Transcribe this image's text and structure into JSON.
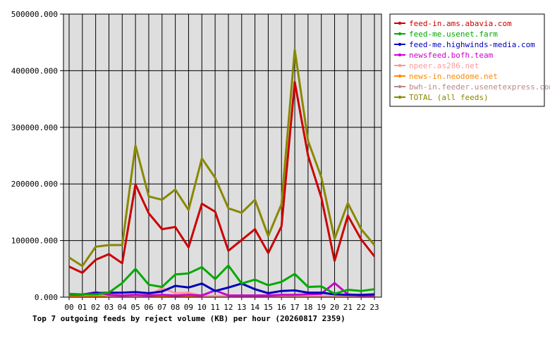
{
  "chart_data": {
    "type": "line",
    "title": "Top 7 outgoing feeds by reject volume (KB) per hour (20260817 2359)",
    "xlabel": "",
    "ylabel": "",
    "categories": [
      "00",
      "01",
      "02",
      "03",
      "04",
      "05",
      "06",
      "07",
      "08",
      "09",
      "10",
      "11",
      "12",
      "13",
      "14",
      "15",
      "16",
      "17",
      "18",
      "19",
      "20",
      "21",
      "22",
      "23"
    ],
    "ylim": [
      0,
      500000
    ],
    "yticks": [
      "0.000",
      "100000.000",
      "200000.000",
      "300000.000",
      "400000.000",
      "500000.000"
    ],
    "grid": true,
    "legend_position": "right",
    "series": [
      {
        "name": "feed-in.ams.abavia.com",
        "color": "#cc0000",
        "values": [
          54000,
          43000,
          66000,
          76000,
          60000,
          199000,
          148000,
          120000,
          124000,
          88000,
          165000,
          151000,
          82000,
          101000,
          120000,
          78000,
          125000,
          380000,
          250000,
          176000,
          64000,
          144000,
          102000,
          72000
        ]
      },
      {
        "name": "feed-me.usenet.farm",
        "color": "#00aa00",
        "values": [
          6000,
          5000,
          5000,
          8000,
          25000,
          50000,
          22000,
          18000,
          40000,
          42000,
          53000,
          32000,
          56000,
          24000,
          31000,
          21000,
          27000,
          41000,
          18000,
          19000,
          6000,
          13000,
          11000,
          14000
        ]
      },
      {
        "name": "feed-me.highwinds-media.com",
        "color": "#0000bb",
        "values": [
          5000,
          5000,
          7000,
          8000,
          8000,
          9000,
          7000,
          10000,
          20000,
          17000,
          24000,
          11000,
          17000,
          24000,
          14000,
          7000,
          11000,
          12000,
          8000,
          8000,
          5000,
          4000,
          4000,
          5000
        ]
      },
      {
        "name": "newsfeed.bofh.team",
        "color": "#cc00cc",
        "values": [
          5000,
          4000,
          9000,
          4000,
          3000,
          4000,
          3000,
          4000,
          3000,
          4000,
          3000,
          12000,
          3000,
          3000,
          3000,
          3000,
          4000,
          4000,
          5000,
          6000,
          25000,
          5000,
          3000,
          3000
        ]
      },
      {
        "name": "npeer.as286.net",
        "color": "#ff9999",
        "values": [
          6000,
          3000,
          8000,
          2000,
          2000,
          2000,
          2000,
          16000,
          7000,
          8000,
          2000,
          2000,
          2000,
          2000,
          2000,
          2000,
          2000,
          2000,
          2000,
          2000,
          2000,
          2000,
          2000,
          2000
        ]
      },
      {
        "name": "news-in.neodome.net",
        "color": "#ff8800",
        "values": [
          1000,
          1000,
          1000,
          1000,
          1000,
          1000,
          1000,
          1000,
          1000,
          1000,
          1000,
          1000,
          1000,
          1000,
          1000,
          1000,
          1000,
          1000,
          1000,
          1000,
          1000,
          1000,
          1000,
          1000
        ]
      },
      {
        "name": "bwh-in.feeder.usenetexpress.com",
        "color": "#bb8888",
        "values": [
          2000,
          2000,
          2000,
          2000,
          2000,
          2000,
          2000,
          2000,
          2000,
          2000,
          2000,
          2000,
          2000,
          2000,
          2000,
          2000,
          2000,
          2000,
          2000,
          2000,
          2000,
          2000,
          2000,
          2000
        ]
      },
      {
        "name": "TOTAL (all feeds)",
        "color": "#888800",
        "values": [
          70000,
          55000,
          89000,
          92000,
          92000,
          268000,
          178000,
          172000,
          190000,
          154000,
          245000,
          211000,
          157000,
          149000,
          172000,
          108000,
          164000,
          437000,
          276000,
          212000,
          103000,
          166000,
          120000,
          92000
        ]
      }
    ]
  }
}
